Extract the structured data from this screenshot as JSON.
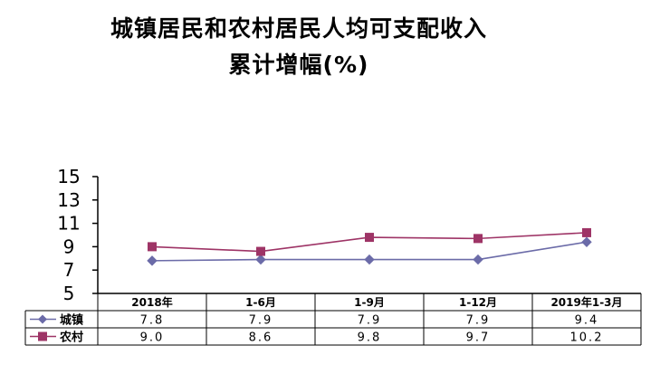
{
  "title_line1": "城镇居民和农村居民人均可支配收入",
  "title_line2": "累计增幅(%)",
  "chart_data": {
    "type": "line",
    "title": "城镇居民和农村居民人均可支配收入累计增幅(%)",
    "categories": [
      "2018年",
      "1-6月",
      "1-9月",
      "1-12月",
      "2019年1-3月"
    ],
    "yticks": [
      "15",
      "13",
      "11",
      "9",
      "7",
      "5"
    ],
    "ylim": [
      5,
      15
    ],
    "grid": false,
    "legend": "data-table-left",
    "series": [
      {
        "name": "城镇",
        "values": [
          7.8,
          7.9,
          7.9,
          7.9,
          9.4
        ],
        "labels": [
          "7.8",
          "7.9",
          "7.9",
          "7.9",
          "9.4"
        ],
        "color": "#6B6BA8",
        "marker": "diamond"
      },
      {
        "name": "农村",
        "values": [
          9.0,
          8.6,
          9.8,
          9.7,
          10.2
        ],
        "labels": [
          "9.0",
          "8.6",
          "9.8",
          "9.7",
          "10.2"
        ],
        "color": "#9E3466",
        "marker": "square"
      }
    ]
  }
}
